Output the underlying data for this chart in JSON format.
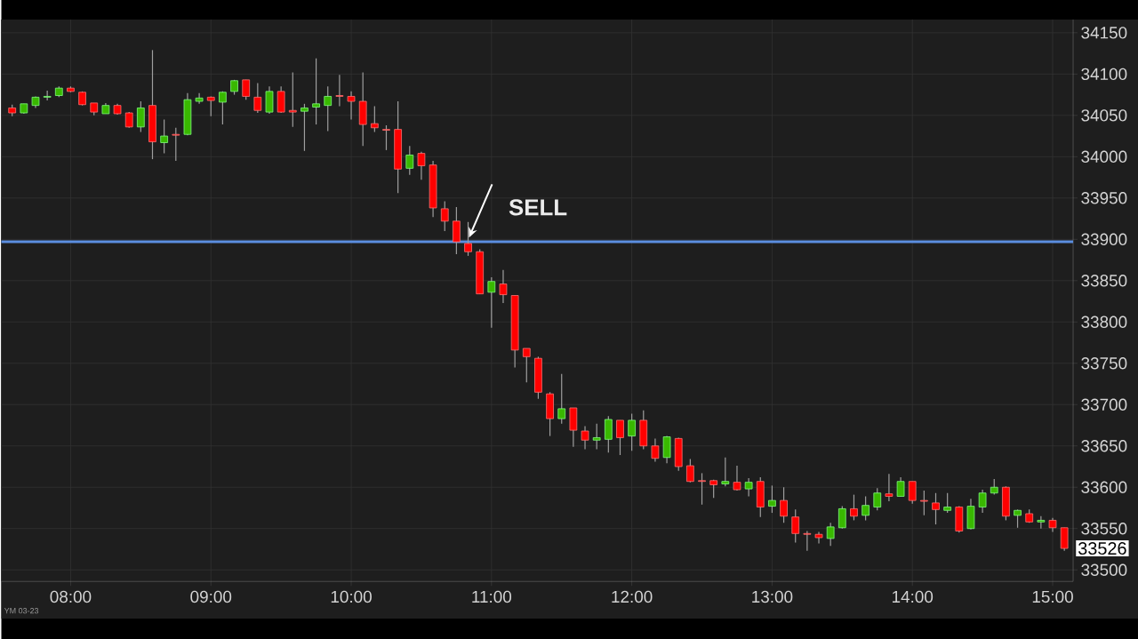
{
  "chart_data": {
    "type": "candlestick",
    "x": [
      7.5833,
      7.6667,
      7.75,
      7.8333,
      7.9167,
      8,
      8.0833,
      8.1667,
      8.25,
      8.3333,
      8.4167,
      8.5,
      8.5833,
      8.6667,
      8.75,
      8.8333,
      8.9167,
      9,
      9.0833,
      9.1667,
      9.25,
      9.3333,
      9.4167,
      9.5,
      9.5833,
      9.6667,
      9.75,
      9.8333,
      9.9167,
      10,
      10.0833,
      10.1667,
      10.25,
      10.3333,
      10.4167,
      10.5,
      10.5833,
      10.6667,
      10.75,
      10.8333,
      10.9167,
      11,
      11.0833,
      11.1667,
      11.25,
      11.3333,
      11.4167,
      11.5,
      11.5833,
      11.6667,
      11.75,
      11.8333,
      11.9167,
      12,
      12.0833,
      12.1667,
      12.25,
      12.3333,
      12.4167,
      12.5,
      12.5833,
      12.6667,
      12.75,
      12.8333,
      12.9167,
      13,
      13.0833,
      13.1667,
      13.25,
      13.3333,
      13.4167,
      13.5,
      13.5833,
      13.6667,
      13.75,
      13.8333,
      13.9167,
      14,
      14.0833,
      14.1667,
      14.25,
      14.3333,
      14.4167,
      14.5,
      14.5833,
      14.6667,
      14.75,
      14.8333,
      14.9167,
      15,
      15.0833
    ],
    "ohlc": [
      [
        34059,
        34063,
        34049,
        34053
      ],
      [
        34053,
        34064,
        34052,
        34064
      ],
      [
        34062,
        34073,
        34059,
        34072
      ],
      [
        34072,
        34080,
        34068,
        34073
      ],
      [
        34074,
        34085,
        34072,
        34083
      ],
      [
        34083,
        34085,
        34078,
        34079
      ],
      [
        34078,
        34079,
        34062,
        34063
      ],
      [
        34065,
        34065,
        34050,
        34054
      ],
      [
        34052,
        34065,
        34052,
        34062
      ],
      [
        34062,
        34064,
        34051,
        34052
      ],
      [
        34053,
        34054,
        34035,
        34036
      ],
      [
        34036,
        34067,
        34030,
        34059
      ],
      [
        34062,
        34129,
        33997,
        34018
      ],
      [
        34017,
        34045,
        34004,
        34025
      ],
      [
        34027,
        34035,
        33995,
        34026
      ],
      [
        34027,
        34077,
        34026,
        34069
      ],
      [
        34067,
        34077,
        34064,
        34071
      ],
      [
        34072,
        34073,
        34049,
        34068
      ],
      [
        34066,
        34079,
        34039,
        34078
      ],
      [
        34079,
        34093,
        34075,
        34092
      ],
      [
        34093,
        34093,
        34069,
        34073
      ],
      [
        34072,
        34089,
        34053,
        34056
      ],
      [
        34054,
        34085,
        34052,
        34079
      ],
      [
        34079,
        34085,
        34053,
        34054
      ],
      [
        34056,
        34102,
        34036,
        34054
      ],
      [
        34055,
        34064,
        34007,
        34059
      ],
      [
        34060,
        34119,
        34039,
        34064
      ],
      [
        34062,
        34085,
        34031,
        34073
      ],
      [
        34074,
        34099,
        34061,
        34073
      ],
      [
        34073,
        34079,
        34045,
        34067
      ],
      [
        34067,
        34102,
        34013,
        34039
      ],
      [
        34040,
        34061,
        34030,
        34035
      ],
      [
        34033,
        34038,
        34008,
        34032
      ],
      [
        34033,
        34067,
        33956,
        33985
      ],
      [
        33986,
        34013,
        33978,
        34002
      ],
      [
        34004,
        34006,
        33972,
        33989
      ],
      [
        33990,
        33995,
        33927,
        33938
      ],
      [
        33937,
        33946,
        33910,
        33922
      ],
      [
        33922,
        33939,
        33882,
        33897
      ],
      [
        33895,
        33921,
        33880,
        33885
      ],
      [
        33885,
        33888,
        33834,
        33834
      ],
      [
        33836,
        33854,
        33793,
        33849
      ],
      [
        33846,
        33863,
        33823,
        33833
      ],
      [
        33832,
        33832,
        33745,
        33766
      ],
      [
        33768,
        33768,
        33727,
        33758
      ],
      [
        33756,
        33758,
        33707,
        33715
      ],
      [
        33713,
        33715,
        33662,
        33683
      ],
      [
        33683,
        33737,
        33677,
        33695
      ],
      [
        33696,
        33696,
        33649,
        33669
      ],
      [
        33668,
        33674,
        33646,
        33657
      ],
      [
        33657,
        33677,
        33646,
        33660
      ],
      [
        33658,
        33686,
        33642,
        33682
      ],
      [
        33681,
        33681,
        33639,
        33660
      ],
      [
        33662,
        33689,
        33644,
        33681
      ],
      [
        33681,
        33693,
        33646,
        33650
      ],
      [
        33650,
        33659,
        33631,
        33635
      ],
      [
        33636,
        33662,
        33629,
        33661
      ],
      [
        33659,
        33660,
        33620,
        33625
      ],
      [
        33626,
        33634,
        33606,
        33607
      ],
      [
        33608,
        33617,
        33579,
        33607
      ],
      [
        33608,
        33609,
        33587,
        33603
      ],
      [
        33604,
        33636,
        33601,
        33607
      ],
      [
        33606,
        33626,
        33596,
        33597
      ],
      [
        33598,
        33611,
        33589,
        33606
      ],
      [
        33607,
        33612,
        33564,
        33576
      ],
      [
        33577,
        33602,
        33569,
        33584
      ],
      [
        33584,
        33600,
        33557,
        33565
      ],
      [
        33564,
        33573,
        33533,
        33544
      ],
      [
        33544,
        33547,
        33523,
        33543
      ],
      [
        33543,
        33546,
        33532,
        33539
      ],
      [
        33538,
        33557,
        33529,
        33552
      ],
      [
        33551,
        33577,
        33550,
        33574
      ],
      [
        33574,
        33591,
        33560,
        33565
      ],
      [
        33566,
        33589,
        33560,
        33578
      ],
      [
        33576,
        33599,
        33572,
        33593
      ],
      [
        33592,
        33616,
        33583,
        33589
      ],
      [
        33589,
        33612,
        33589,
        33607
      ],
      [
        33607,
        33607,
        33580,
        33584
      ],
      [
        33584,
        33596,
        33566,
        33583
      ],
      [
        33581,
        33593,
        33555,
        33573
      ],
      [
        33572,
        33593,
        33569,
        33576
      ],
      [
        33576,
        33577,
        33545,
        33547
      ],
      [
        33550,
        33586,
        33549,
        33577
      ],
      [
        33576,
        33597,
        33569,
        33593
      ],
      [
        33593,
        33610,
        33591,
        33600
      ],
      [
        33600,
        33601,
        33560,
        33565
      ],
      [
        33566,
        33573,
        33551,
        33572
      ],
      [
        33568,
        33573,
        33557,
        33558
      ],
      [
        33558,
        33565,
        33550,
        33560
      ],
      [
        33560,
        33563,
        33546,
        33551
      ],
      [
        33551,
        33551,
        33523,
        33526
      ]
    ],
    "xlim": [
      7.506,
      15.146
    ],
    "ylim": [
      33486,
      34166
    ],
    "xticks": [
      {
        "value": 8,
        "label": "08:00"
      },
      {
        "value": 9,
        "label": "09:00"
      },
      {
        "value": 10,
        "label": "10:00"
      },
      {
        "value": 11,
        "label": "11:00"
      },
      {
        "value": 12,
        "label": "12:00"
      },
      {
        "value": 13,
        "label": "13:00"
      },
      {
        "value": 14,
        "label": "14:00"
      },
      {
        "value": 15,
        "label": "15:00"
      }
    ],
    "yticks": [
      33500,
      33550,
      33600,
      33650,
      33700,
      33750,
      33800,
      33850,
      33900,
      33950,
      34000,
      34050,
      34100,
      34150
    ],
    "ref_lines": [
      {
        "axis": "y",
        "value": 33897,
        "color": "#5b8ee0"
      }
    ],
    "annotations": [
      {
        "text": "SELL",
        "x": 10.8333,
        "y": 33900
      },
      {
        "text": "33526",
        "x": 15.0833,
        "y": 33526
      },
      "YM 03-23"
    ],
    "grid": true
  }
}
